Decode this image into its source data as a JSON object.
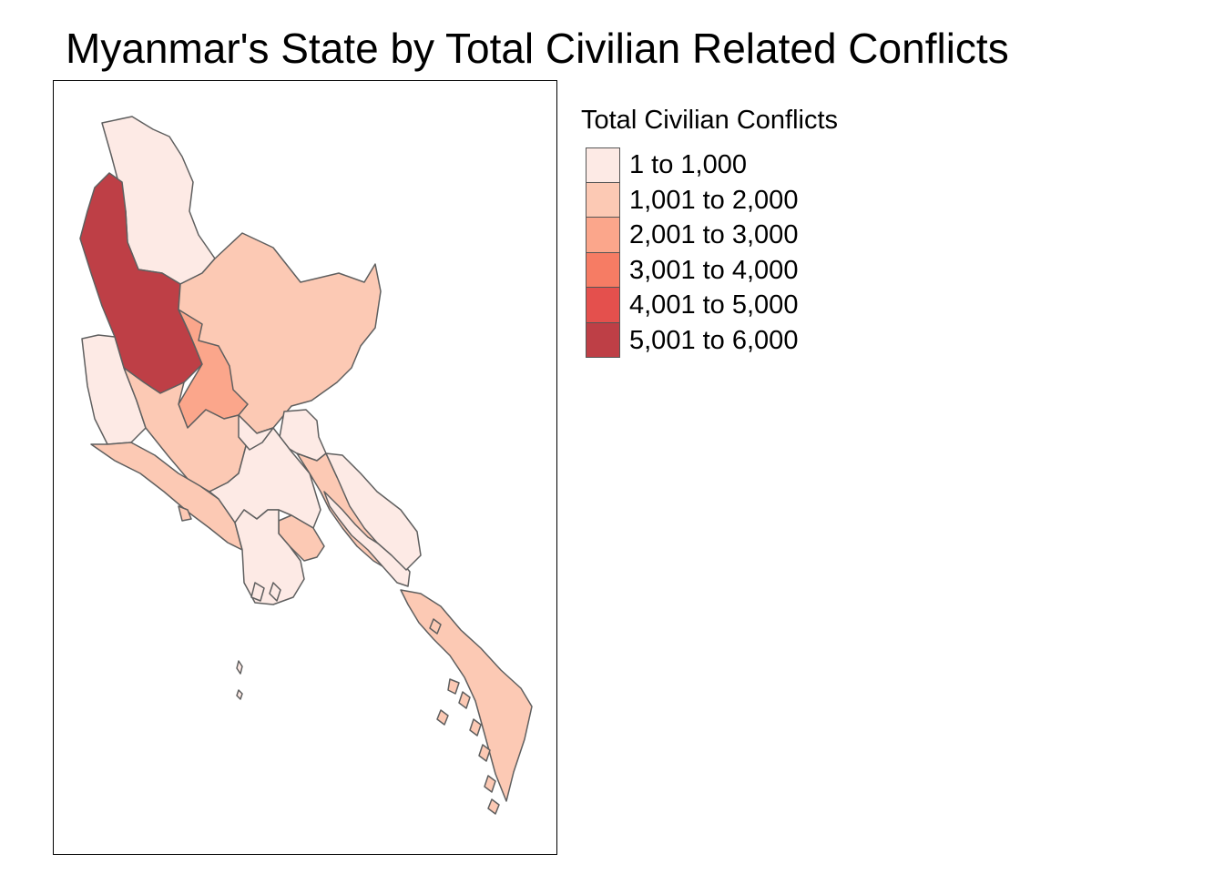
{
  "title": "Myanmar's State by Total Civilian Related Conflicts",
  "legend": {
    "title": "Total Civilian Conflicts",
    "items": [
      {
        "label": "1 to 1,000",
        "color": "#fdeae5"
      },
      {
        "label": "1,001 to 2,000",
        "color": "#fcc9b4"
      },
      {
        "label": "2,001 to 3,000",
        "color": "#fba68b"
      },
      {
        "label": "3,001 to 4,000",
        "color": "#f67c64"
      },
      {
        "label": "4,001 to 5,000",
        "color": "#e4504d"
      },
      {
        "label": "5,001 to 6,000",
        "color": "#be3f46"
      }
    ]
  },
  "colors": {
    "border": "#5f5f5f",
    "frame": "#000000"
  }
}
